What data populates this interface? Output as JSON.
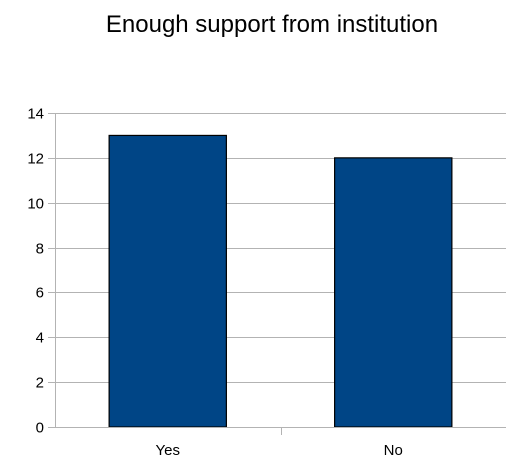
{
  "chart_data": {
    "type": "bar",
    "title": "Enough support from institution",
    "xlabel": "",
    "ylabel": "",
    "categories": [
      "Yes",
      "No"
    ],
    "values": [
      13,
      12
    ],
    "ylim": [
      0,
      14
    ],
    "yticks": [
      0,
      2,
      4,
      6,
      8,
      10,
      12,
      14
    ],
    "grid": true,
    "legend": "none",
    "bar_color": "#004586"
  }
}
